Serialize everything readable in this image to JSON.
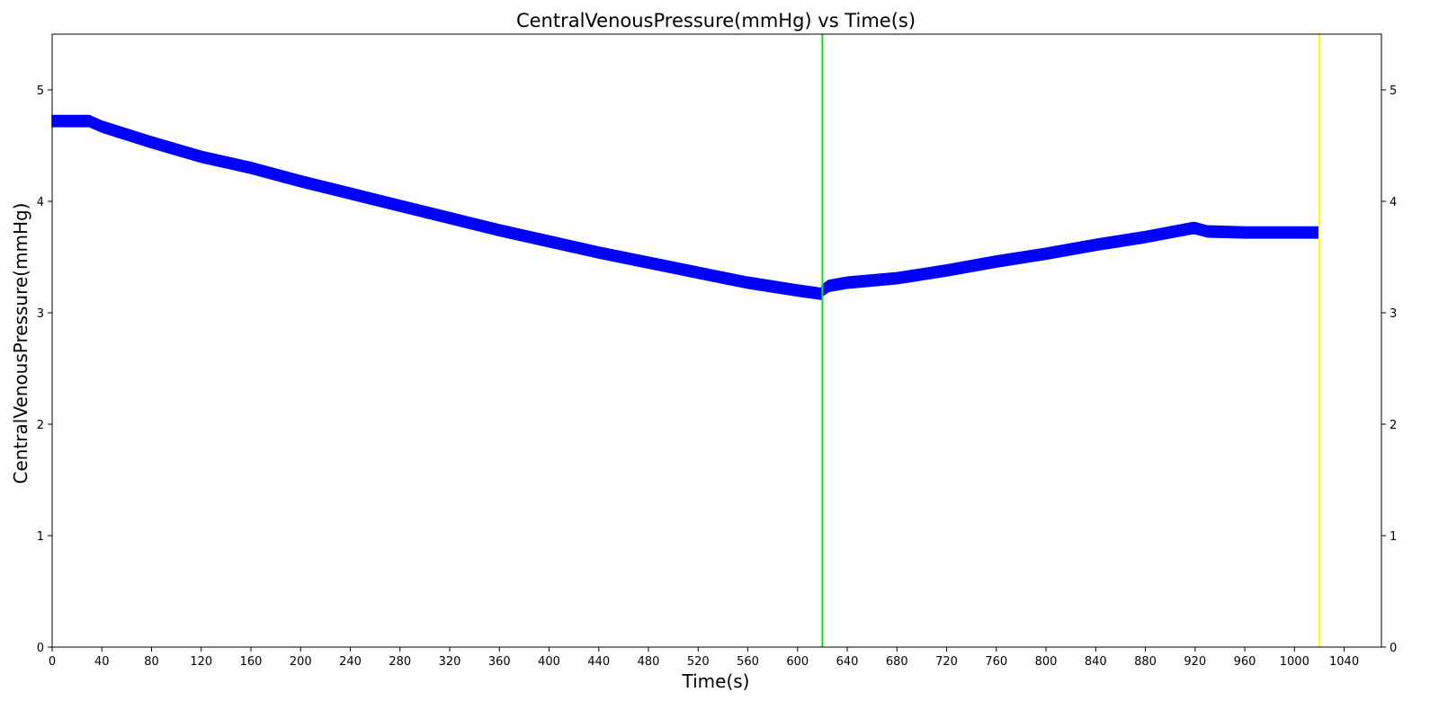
{
  "chart_data": {
    "type": "line",
    "title": "CentralVenousPressure(mmHg) vs Time(s)",
    "xlabel": "Time(s)",
    "ylabel": "CentralVenousPressure(mmHg)",
    "xlim": [
      0,
      1070
    ],
    "ylim": [
      0,
      5.5
    ],
    "x_ticks": [
      0,
      40,
      80,
      120,
      160,
      200,
      240,
      280,
      320,
      360,
      400,
      440,
      480,
      520,
      560,
      600,
      640,
      680,
      720,
      760,
      800,
      840,
      880,
      920,
      960,
      1000,
      1040
    ],
    "y_ticks": [
      0,
      1,
      2,
      3,
      4,
      5
    ],
    "right_axis_ticks": true,
    "grid": false,
    "series": [
      {
        "color": "#0000ff",
        "band_width": 0.1,
        "x": [
          0,
          30,
          40,
          80,
          120,
          160,
          200,
          240,
          280,
          320,
          360,
          400,
          440,
          480,
          520,
          560,
          600,
          619,
          620,
          625,
          640,
          680,
          720,
          760,
          800,
          840,
          880,
          918,
          920,
          930,
          960,
          1000,
          1020
        ],
        "y": [
          4.72,
          4.72,
          4.67,
          4.53,
          4.4,
          4.3,
          4.18,
          4.07,
          3.96,
          3.85,
          3.74,
          3.64,
          3.54,
          3.45,
          3.36,
          3.27,
          3.2,
          3.17,
          3.2,
          3.24,
          3.27,
          3.31,
          3.38,
          3.46,
          3.53,
          3.61,
          3.68,
          3.76,
          3.76,
          3.73,
          3.72,
          3.72,
          3.72
        ]
      }
    ],
    "vlines": [
      {
        "x": 620,
        "color": "#00ee00"
      },
      {
        "x": 1020,
        "color": "#ffff00"
      }
    ]
  }
}
